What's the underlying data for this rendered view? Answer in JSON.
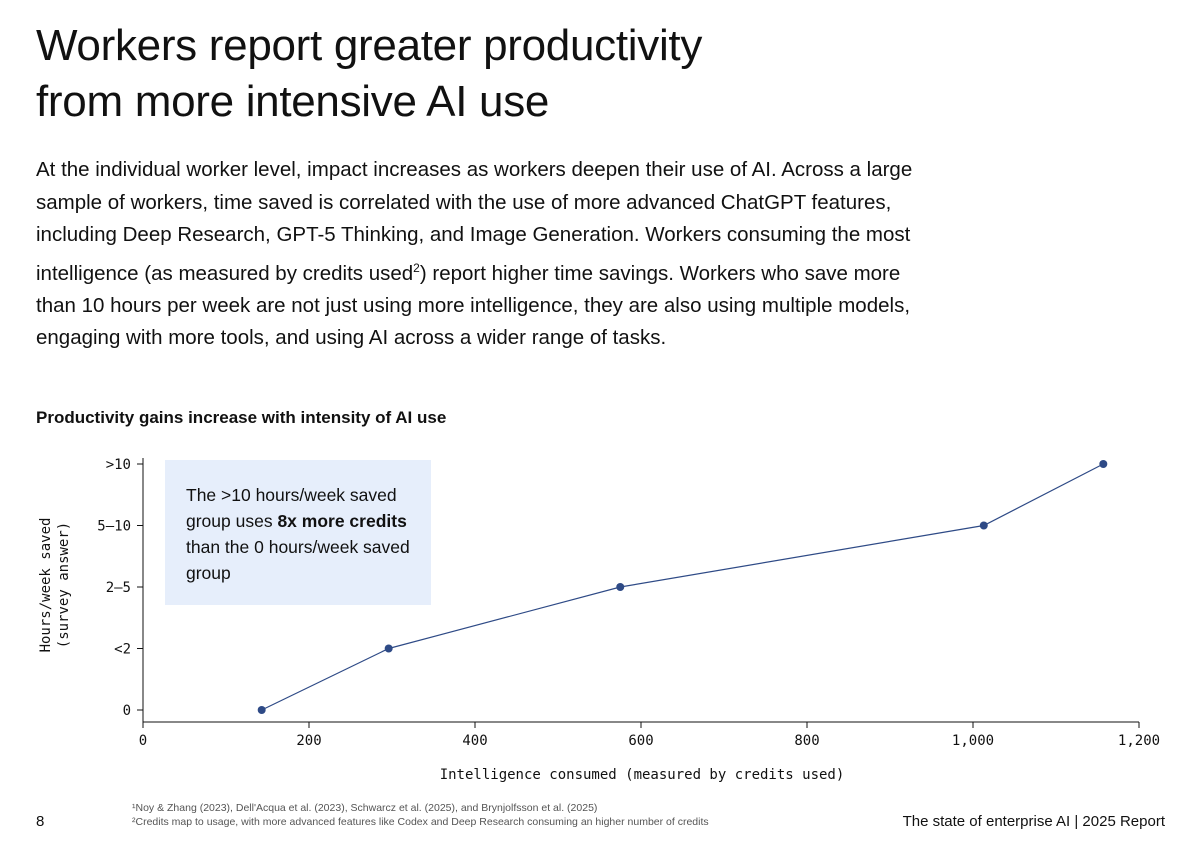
{
  "page": {
    "title_line1": "Workers report greater productivity",
    "title_line2": "from more intensive AI use",
    "intro_before_sup": "At the individual worker level, impact increases as workers deepen their use of AI. Across a large sample of workers, time saved is correlated with the use of more advanced ChatGPT features, including Deep Research, GPT-5 Thinking, and Image Generation. Workers consuming the most intelligence (as measured by credits used",
    "intro_sup": "2",
    "intro_after_sup": ") report higher time savings. Workers who save more than 10 hours per week are not just using more intelligence, they are also using multiple models, engaging with more tools, and using AI across a wider range of tasks.",
    "chart_heading": "Productivity gains increase with intensity of AI use",
    "callout_part1": "The >10 hours/week saved group uses ",
    "callout_bold": "8x more credits",
    "callout_part2": " than the 0 hours/week saved group",
    "page_number": "8",
    "footnote1": "¹Noy & Zhang (2023), Dell'Acqua et al. (2023), Schwarcz et al. (2025), and Brynjolfsson et al. (2025)",
    "footnote2": "²Credits map to usage, with more advanced features like Codex and Deep Research consuming an higher number of credits",
    "footer_report": "The state of enterprise AI  |  2025 Report"
  },
  "colors": {
    "line": "#2e4a86",
    "callout_bg": "#e6eefb",
    "axis": "#111111"
  },
  "chart_data": {
    "type": "line",
    "title": "Productivity gains increase with intensity of AI use",
    "xlabel": "Intelligence consumed (measured by credits used)",
    "ylabel_line1": "Hours/week saved",
    "ylabel_line2": "(survey answer)",
    "xlim": [
      0,
      1200
    ],
    "x_ticks": [
      0,
      200,
      400,
      600,
      800,
      1000,
      1200
    ],
    "x_tick_labels": [
      "0",
      "200",
      "400",
      "600",
      "800",
      "1,000",
      "1,200"
    ],
    "y_categories": [
      "0",
      "<2",
      "2–5",
      "5–10",
      ">10"
    ],
    "x": [
      143,
      296,
      575,
      1013,
      1157
    ],
    "y": [
      "0",
      "<2",
      "2–5",
      "5–10",
      ">10"
    ],
    "annotation": "The >10 hours/week saved group uses 8x more credits than the 0 hours/week saved group"
  }
}
